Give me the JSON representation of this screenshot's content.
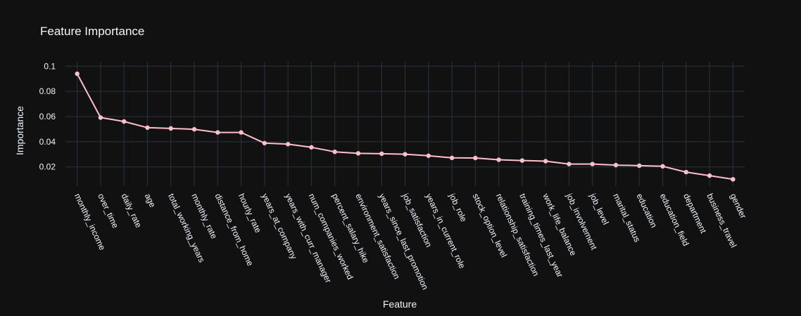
{
  "chart_data": {
    "type": "line",
    "title": "Feature Importance",
    "xlabel": "Feature",
    "ylabel": "Importance",
    "y_ticks": [
      "0.02",
      "0.04",
      "0.06",
      "0.08",
      "0.1"
    ],
    "ylim": [
      0.0048,
      0.1035
    ],
    "grid": true,
    "line_color": "#ffc0cb",
    "background_color": "#111111",
    "grid_color": "#283442",
    "text_color": "#f2f5fa",
    "categories": [
      "monthly_income",
      "over_time",
      "daily_rate",
      "age",
      "total_working_years",
      "monthly_rate",
      "distance_from_home",
      "hourly_rate",
      "years_at_company",
      "years_with_curr_manager",
      "num_companies_worked",
      "percent_salary_hike",
      "environment_satisfaction",
      "years_since_last_promotion",
      "job_satisfaction",
      "years_in_current_role",
      "job_role",
      "stock_option_level",
      "relationship_satisfaction",
      "training_times_last_year",
      "work_life_balance",
      "job_involvement",
      "job_level",
      "marital_status",
      "education",
      "education_field",
      "department",
      "business_travel",
      "gender"
    ],
    "values": [
      0.094,
      0.0592,
      0.0561,
      0.0512,
      0.0506,
      0.0499,
      0.0474,
      0.0474,
      0.0389,
      0.0381,
      0.0356,
      0.032,
      0.0308,
      0.0305,
      0.0301,
      0.0289,
      0.0272,
      0.0271,
      0.0257,
      0.0251,
      0.0246,
      0.0223,
      0.0223,
      0.0215,
      0.021,
      0.0205,
      0.0159,
      0.0131,
      0.0102
    ]
  }
}
